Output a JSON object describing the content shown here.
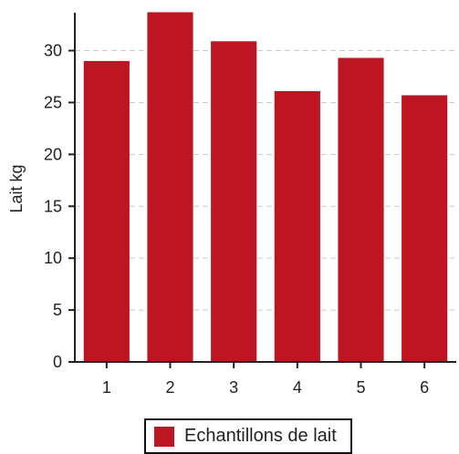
{
  "chart_data": {
    "type": "bar",
    "categories": [
      "1",
      "2",
      "3",
      "4",
      "5",
      "6"
    ],
    "series": [
      {
        "name": "Echantillons de lait",
        "values": [
          29.0,
          33.7,
          30.9,
          26.1,
          29.3,
          25.7
        ]
      }
    ],
    "xlabel": "",
    "ylabel": "Lait kg",
    "ylim": [
      0,
      34
    ],
    "yticks": [
      "0",
      "5",
      "10",
      "15",
      "20",
      "25",
      "30"
    ],
    "grid": "horizontal dashed",
    "legend_position": "bottom",
    "colors": {
      "bar": "#bd1622"
    }
  }
}
